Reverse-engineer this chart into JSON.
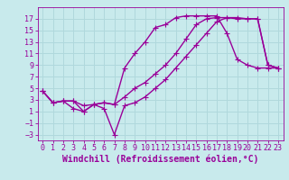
{
  "xlabel": "Windchill (Refroidissement éolien,°C)",
  "background_color": "#c8eaec",
  "grid_color": "#b0d8dc",
  "line_color": "#990099",
  "xlim": [
    -0.5,
    23.5
  ],
  "ylim": [
    -4,
    19
  ],
  "xticks": [
    0,
    1,
    2,
    3,
    4,
    5,
    6,
    7,
    8,
    9,
    10,
    11,
    12,
    13,
    14,
    15,
    16,
    17,
    18,
    19,
    20,
    21,
    22,
    23
  ],
  "yticks": [
    -3,
    -1,
    1,
    3,
    5,
    7,
    9,
    11,
    13,
    15,
    17
  ],
  "line1_x": [
    0,
    1,
    2,
    3,
    4,
    5,
    6,
    7,
    8,
    9,
    10,
    11,
    12,
    13,
    14,
    15,
    16,
    17,
    18,
    19,
    20,
    21,
    22,
    23
  ],
  "line1_y": [
    4.5,
    2.5,
    2.8,
    2.8,
    1.0,
    2.2,
    2.5,
    2.2,
    8.5,
    11.0,
    13.0,
    15.5,
    16.0,
    17.2,
    17.5,
    17.5,
    17.5,
    17.5,
    14.5,
    10.0,
    9.0,
    8.5,
    8.5,
    8.5
  ],
  "line2_x": [
    0,
    1,
    2,
    3,
    4,
    5,
    6,
    7,
    8,
    9,
    10,
    11,
    12,
    13,
    14,
    15,
    16,
    17,
    18,
    19,
    20,
    21,
    22,
    23
  ],
  "line2_y": [
    4.5,
    2.5,
    2.8,
    1.5,
    1.0,
    2.2,
    1.5,
    -3.0,
    2.0,
    2.5,
    3.5,
    5.0,
    6.5,
    8.5,
    10.5,
    12.5,
    14.5,
    16.5,
    17.2,
    17.2,
    17.0,
    17.0,
    9.0,
    8.5
  ],
  "line3_x": [
    0,
    1,
    2,
    3,
    4,
    5,
    6,
    7,
    8,
    9,
    10,
    11,
    12,
    13,
    14,
    15,
    16,
    17,
    18,
    19,
    20,
    21,
    22,
    23
  ],
  "line3_y": [
    4.5,
    2.5,
    2.8,
    2.8,
    2.0,
    2.2,
    2.5,
    2.2,
    3.5,
    5.0,
    6.0,
    7.5,
    9.0,
    11.0,
    13.5,
    16.0,
    17.0,
    17.2,
    17.2,
    17.0,
    17.0,
    17.0,
    9.0,
    8.5
  ],
  "marker": "+",
  "markersize": 4,
  "linewidth": 1.0,
  "font_family": "monospace",
  "xlabel_fontsize": 7,
  "tick_fontsize": 6
}
